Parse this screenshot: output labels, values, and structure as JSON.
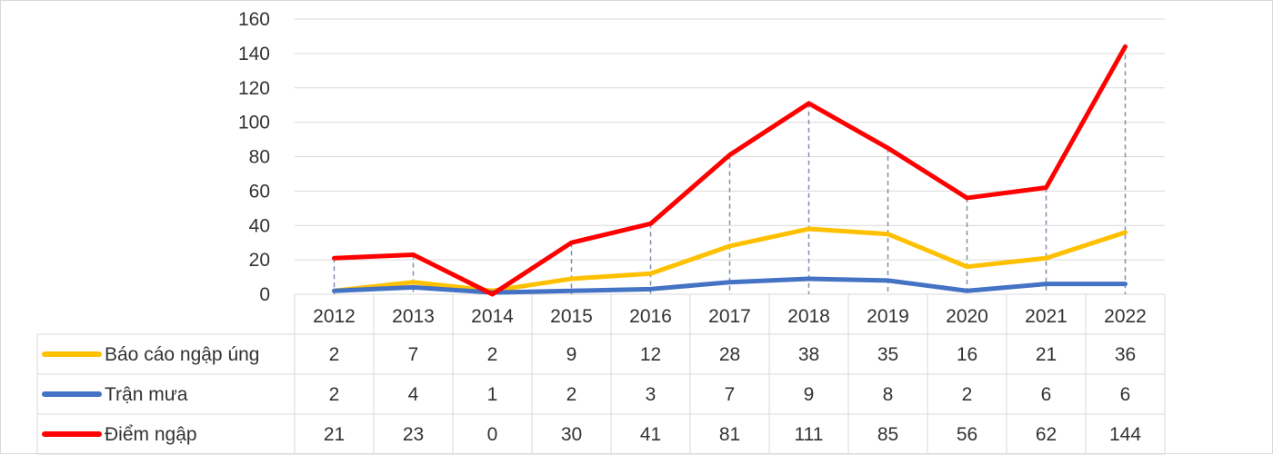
{
  "chart_data": {
    "type": "line",
    "title": "",
    "xlabel": "",
    "ylabel": "",
    "categories": [
      "2012",
      "2013",
      "2014",
      "2015",
      "2016",
      "2017",
      "2018",
      "2019",
      "2020",
      "2021",
      "2022"
    ],
    "ylim": [
      0,
      160
    ],
    "yticks": [
      0,
      20,
      40,
      60,
      80,
      100,
      120,
      140,
      160
    ],
    "grid": true,
    "drop_lines": true,
    "legend_placement": "data-table-left",
    "series": [
      {
        "name": "Báo cáo ngập úng",
        "color": "#FFC000",
        "values": [
          2,
          7,
          2,
          9,
          12,
          28,
          38,
          35,
          16,
          21,
          36
        ]
      },
      {
        "name": "Trận mưa",
        "color": "#4472C4",
        "values": [
          2,
          4,
          1,
          2,
          3,
          7,
          9,
          8,
          2,
          6,
          6
        ]
      },
      {
        "name": "Điểm ngập",
        "color": "#FF0000",
        "values": [
          21,
          23,
          0,
          30,
          41,
          81,
          111,
          85,
          56,
          62,
          144
        ]
      }
    ]
  }
}
